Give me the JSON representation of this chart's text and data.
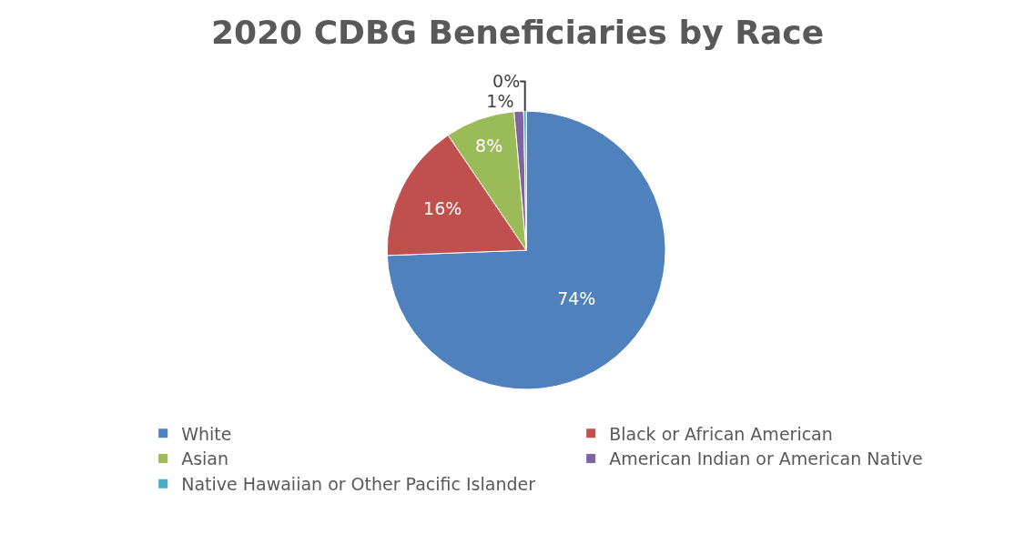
{
  "chart_data": {
    "type": "pie",
    "title": "2020 CDBG Beneficiaries by Race",
    "categories": [
      "White",
      "Black or African American",
      "Asian",
      "American Indian or American Native",
      "Native Hawaiian or Other Pacific Islander"
    ],
    "values": [
      74.4,
      16.1,
      8.1,
      1.1,
      0.3
    ],
    "colors": [
      "#4f81bd",
      "#c0504d",
      "#9bbb59",
      "#8064a2",
      "#4bacc6"
    ],
    "value_labels": [
      "74%",
      "16%",
      "8%",
      "1%",
      "0%"
    ],
    "legend": "bottom"
  }
}
